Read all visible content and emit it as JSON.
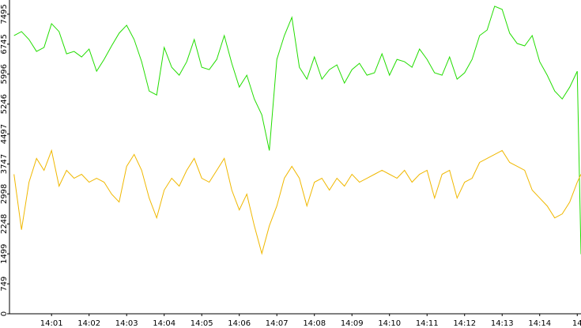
{
  "chart_data": {
    "type": "line",
    "x": [
      840.0,
      840.2,
      840.4,
      840.6,
      840.8,
      841.0,
      841.2,
      841.4,
      841.6,
      841.8,
      842.0,
      842.2,
      842.4,
      842.6,
      842.8,
      843.0,
      843.2,
      843.4,
      843.6,
      843.8,
      844.0,
      844.2,
      844.4,
      844.6,
      844.8,
      845.0,
      845.2,
      845.4,
      845.6,
      845.8,
      846.0,
      846.2,
      846.4,
      846.6,
      846.8,
      847.0,
      847.2,
      847.4,
      847.6,
      847.8,
      848.0,
      848.2,
      848.4,
      848.6,
      848.8,
      849.0,
      849.2,
      849.4,
      849.6,
      849.8,
      850.0,
      850.2,
      850.4,
      850.6,
      850.8,
      851.0,
      851.2,
      851.4,
      851.6,
      851.8,
      852.0,
      852.2,
      852.4,
      852.6,
      852.8,
      853.0,
      853.2,
      853.4,
      853.6,
      853.8,
      854.0,
      854.2,
      854.4,
      854.6,
      854.8,
      855.0,
      855.1
    ],
    "series": [
      {
        "color": "#22dd00",
        "values": [
          6960,
          7060,
          6861,
          6564,
          6663,
          7258,
          7060,
          6504,
          6564,
          6425,
          6623,
          6068,
          6365,
          6703,
          7020,
          7218,
          6861,
          6306,
          5572,
          5473,
          6663,
          6167,
          5969,
          6306,
          6861,
          6167,
          6108,
          6365,
          6960,
          6266,
          5671,
          5969,
          5374,
          4977,
          4085,
          6365,
          6960,
          7416,
          6167,
          5870,
          6425,
          5870,
          6108,
          6227,
          5771,
          6108,
          6266,
          5969,
          6028,
          6504,
          5969,
          6365,
          6306,
          6167,
          6623,
          6365,
          6028,
          5969,
          6425,
          5870,
          6028,
          6365,
          6960,
          7099,
          7694,
          7615,
          7020,
          6762,
          6703,
          6960,
          6306,
          5969,
          5572,
          5374,
          5671,
          6068,
          1490
        ]
      },
      {
        "color": "#f0b800",
        "values": [
          3490,
          2102,
          3292,
          3887,
          3589,
          4085,
          3193,
          3589,
          3391,
          3490,
          3292,
          3391,
          3292,
          2994,
          2796,
          3688,
          3986,
          3589,
          2895,
          2399,
          3094,
          3391,
          3193,
          3589,
          3887,
          3391,
          3292,
          3589,
          3887,
          3094,
          2598,
          2994,
          2201,
          1507,
          2201,
          2697,
          3391,
          3688,
          3391,
          2697,
          3292,
          3391,
          3094,
          3391,
          3193,
          3490,
          3292,
          3391,
          3490,
          3589,
          3490,
          3391,
          3589,
          3292,
          3490,
          3589,
          2895,
          3490,
          3589,
          2895,
          3292,
          3391,
          3787,
          3887,
          3986,
          4085,
          3787,
          3688,
          3589,
          3094,
          2895,
          2697,
          2399,
          2498,
          2796,
          3292,
          3490
        ]
      }
    ],
    "xlim": [
      839.88,
      855.1
    ],
    "ylim": [
      0,
      7850
    ],
    "yticks": [
      0,
      749,
      1499,
      2248,
      2998,
      3747,
      4497,
      5246,
      5996,
      6745,
      7495
    ],
    "xticks": [
      {
        "value": 841,
        "label": "14:01"
      },
      {
        "value": 842,
        "label": "14:02"
      },
      {
        "value": 843,
        "label": "14:03"
      },
      {
        "value": 844,
        "label": "14:04"
      },
      {
        "value": 845,
        "label": "14:05"
      },
      {
        "value": 846,
        "label": "14:06"
      },
      {
        "value": 847,
        "label": "14:07"
      },
      {
        "value": 848,
        "label": "14:08"
      },
      {
        "value": 849,
        "label": "14:09"
      },
      {
        "value": 850,
        "label": "14:10"
      },
      {
        "value": 851,
        "label": "14:11"
      },
      {
        "value": 852,
        "label": "14:12"
      },
      {
        "value": 853,
        "label": "14:13"
      },
      {
        "value": 854,
        "label": "14:14"
      },
      {
        "value": 855,
        "label": "14"
      }
    ],
    "grid": false
  }
}
